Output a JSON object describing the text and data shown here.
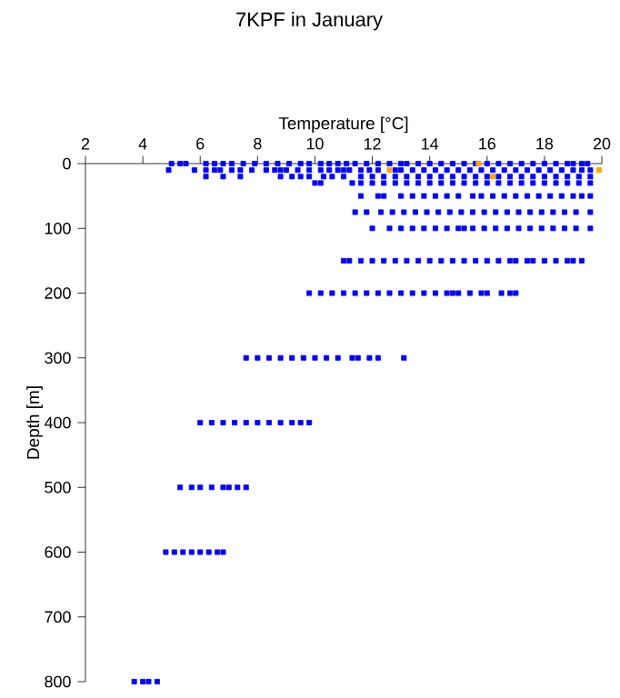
{
  "chart_data": {
    "type": "scatter",
    "title": "7KPF in January",
    "xlabel": "Temperature [°C]",
    "ylabel": "Depth [m]",
    "xlim": [
      2,
      20
    ],
    "ylim": [
      800,
      0
    ],
    "xticks": [
      2,
      4,
      6,
      8,
      10,
      12,
      14,
      16,
      18,
      20
    ],
    "yticks": [
      0,
      100,
      200,
      300,
      400,
      500,
      600,
      700,
      800
    ],
    "marker": "square",
    "series": [
      {
        "color": "#0000ff",
        "x": [
          5.0,
          5.3,
          5.5,
          6.2,
          6.5,
          6.8,
          7.1,
          7.5,
          7.9,
          8.3,
          8.7,
          9.1,
          9.5,
          9.8,
          10.2,
          10.5,
          10.8,
          11.1,
          11.4,
          11.8,
          12.2,
          12.6,
          13.0,
          13.2,
          13.6,
          14.0,
          14.4,
          14.8,
          15.2,
          15.6,
          16.0,
          16.4,
          16.8,
          17.2,
          17.6,
          18.0,
          18.4,
          18.8,
          19.0,
          19.3,
          19.5
        ],
        "values": [
          0,
          0,
          0,
          0,
          0,
          0,
          0,
          0,
          0,
          0,
          0,
          0,
          0,
          0,
          0,
          0,
          0,
          0,
          0,
          0,
          0,
          0,
          0,
          0,
          0,
          0,
          0,
          0,
          0,
          0,
          0,
          0,
          0,
          0,
          0,
          0,
          0,
          0,
          0,
          0,
          0
        ]
      },
      {
        "color": "#0000ff",
        "x": [
          4.9,
          5.8,
          6.2,
          6.5,
          6.7,
          7.1,
          7.4,
          7.8,
          8.3,
          8.6,
          8.8,
          9.0,
          9.4,
          9.8,
          10.2,
          10.5,
          10.8,
          11.0,
          11.2,
          11.6,
          11.9,
          12.2,
          12.8,
          13.0,
          13.4,
          13.8,
          14.2,
          14.6,
          15.0,
          15.4,
          15.8,
          16.2,
          16.6,
          17.0,
          17.4,
          17.8,
          18.2,
          18.6,
          19.0,
          19.3,
          19.6
        ],
        "values": [
          10,
          10,
          10,
          10,
          10,
          10,
          10,
          10,
          10,
          10,
          10,
          10,
          10,
          10,
          10,
          10,
          10,
          10,
          10,
          10,
          10,
          10,
          10,
          10,
          10,
          10,
          10,
          10,
          10,
          10,
          10,
          10,
          10,
          10,
          10,
          10,
          10,
          10,
          10,
          10,
          10
        ]
      },
      {
        "color": "#0000ff",
        "x": [
          6.2,
          6.8,
          7.4,
          8.8,
          9.2,
          9.5,
          9.8,
          10.3,
          10.6,
          11.0,
          11.6,
          12.0,
          12.4,
          12.8,
          13.2,
          13.6,
          14.0,
          14.4,
          14.8,
          15.2,
          15.6,
          16.0,
          16.4,
          16.8,
          17.2,
          17.6,
          18.0,
          18.4,
          18.8,
          19.2,
          19.6
        ],
        "values": [
          20,
          20,
          20,
          20,
          20,
          20,
          20,
          20,
          20,
          20,
          20,
          20,
          20,
          20,
          20,
          20,
          20,
          20,
          20,
          20,
          20,
          20,
          20,
          20,
          20,
          20,
          20,
          20,
          20,
          20,
          20
        ]
      },
      {
        "color": "#0000ff",
        "x": [
          10.0,
          10.2,
          11.3,
          11.6,
          12.0,
          12.4,
          12.8,
          13.2,
          13.6,
          14.0,
          14.4,
          14.8,
          15.2,
          15.6,
          16.0,
          16.4,
          16.8,
          17.2,
          17.6,
          18.0,
          18.4,
          18.8,
          19.2,
          19.6
        ],
        "values": [
          30,
          30,
          30,
          30,
          30,
          30,
          30,
          30,
          30,
          30,
          30,
          30,
          30,
          30,
          30,
          30,
          30,
          30,
          30,
          30,
          30,
          30,
          30,
          30
        ]
      },
      {
        "color": "#0000ff",
        "x": [
          11.6,
          12.2,
          12.4,
          13.0,
          13.4,
          13.8,
          14.2,
          14.6,
          15.0,
          15.5,
          15.8,
          16.2,
          16.6,
          17.0,
          17.4,
          17.8,
          18.2,
          18.6,
          19.0,
          19.3,
          19.6
        ],
        "values": [
          50,
          50,
          50,
          50,
          50,
          50,
          50,
          50,
          50,
          50,
          50,
          50,
          50,
          50,
          50,
          50,
          50,
          50,
          50,
          50,
          50
        ]
      },
      {
        "color": "#0000ff",
        "x": [
          11.4,
          11.8,
          12.3,
          12.7,
          13.1,
          13.5,
          13.9,
          14.3,
          14.7,
          15.1,
          15.5,
          15.9,
          16.3,
          16.7,
          17.1,
          17.5,
          17.9,
          18.3,
          18.7,
          19.1,
          19.6
        ],
        "values": [
          75,
          75,
          75,
          75,
          75,
          75,
          75,
          75,
          75,
          75,
          75,
          75,
          75,
          75,
          75,
          75,
          75,
          75,
          75,
          75,
          75
        ]
      },
      {
        "color": "#0000ff",
        "x": [
          12.0,
          12.6,
          13.0,
          13.4,
          13.8,
          14.2,
          14.6,
          15.0,
          15.2,
          15.5,
          15.9,
          16.3,
          16.7,
          17.1,
          17.5,
          17.9,
          18.3,
          18.7,
          19.1,
          19.6
        ],
        "values": [
          100,
          100,
          100,
          100,
          100,
          100,
          100,
          100,
          100,
          100,
          100,
          100,
          100,
          100,
          100,
          100,
          100,
          100,
          100,
          100
        ]
      },
      {
        "color": "#0000ff",
        "x": [
          11.0,
          11.2,
          11.6,
          12.0,
          12.4,
          12.8,
          13.2,
          13.6,
          14.0,
          14.4,
          14.8,
          15.2,
          15.6,
          16.0,
          16.4,
          16.8,
          17.0,
          17.4,
          17.6,
          18.0,
          18.4,
          18.8,
          19.0,
          19.3
        ],
        "values": [
          150,
          150,
          150,
          150,
          150,
          150,
          150,
          150,
          150,
          150,
          150,
          150,
          150,
          150,
          150,
          150,
          150,
          150,
          150,
          150,
          150,
          150,
          150,
          150
        ]
      },
      {
        "color": "#0000ff",
        "x": [
          9.8,
          10.2,
          10.6,
          11.0,
          11.4,
          11.8,
          12.2,
          12.6,
          13.0,
          13.4,
          13.8,
          14.2,
          14.6,
          14.8,
          15.0,
          15.4,
          15.8,
          16.0,
          16.5,
          16.8,
          17.0
        ],
        "values": [
          200,
          200,
          200,
          200,
          200,
          200,
          200,
          200,
          200,
          200,
          200,
          200,
          200,
          200,
          200,
          200,
          200,
          200,
          200,
          200,
          200
        ]
      },
      {
        "color": "#0000ff",
        "x": [
          7.6,
          8.0,
          8.4,
          8.8,
          9.2,
          9.6,
          10.0,
          10.4,
          10.8,
          11.3,
          11.5,
          11.9,
          12.2,
          13.1
        ],
        "values": [
          300,
          300,
          300,
          300,
          300,
          300,
          300,
          300,
          300,
          300,
          300,
          300,
          300,
          300
        ]
      },
      {
        "color": "#0000ff",
        "x": [
          6.0,
          6.4,
          6.8,
          7.2,
          7.6,
          8.0,
          8.4,
          8.8,
          9.2,
          9.5,
          9.8
        ],
        "values": [
          400,
          400,
          400,
          400,
          400,
          400,
          400,
          400,
          400,
          400,
          400
        ]
      },
      {
        "color": "#0000ff",
        "x": [
          5.3,
          5.7,
          6.0,
          6.4,
          6.8,
          7.0,
          7.3,
          7.6
        ],
        "values": [
          500,
          500,
          500,
          500,
          500,
          500,
          500,
          500
        ]
      },
      {
        "color": "#0000ff",
        "x": [
          4.8,
          5.1,
          5.4,
          5.7,
          6.0,
          6.3,
          6.6,
          6.8
        ],
        "values": [
          600,
          600,
          600,
          600,
          600,
          600,
          600,
          600
        ]
      },
      {
        "color": "#0000ff",
        "x": [
          3.7,
          4.0,
          4.2,
          4.5
        ],
        "values": [
          800,
          800,
          800,
          800
        ]
      },
      {
        "color": "#ffa500",
        "x": [
          15.7,
          12.6,
          19.9,
          16.2
        ],
        "values": [
          0,
          10,
          10,
          20
        ]
      }
    ]
  }
}
